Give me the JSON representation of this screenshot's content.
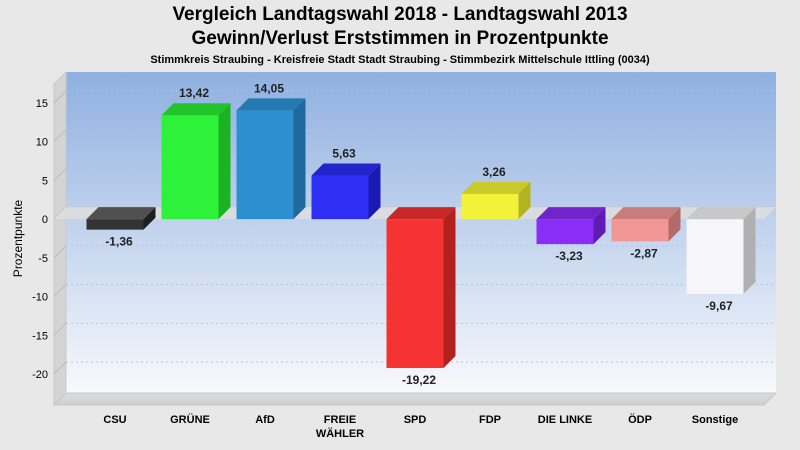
{
  "chart_data": {
    "type": "bar",
    "title": "Vergleich Landtagswahl 2018 - Landtagswahl 2013",
    "subtitle": "Gewinn/Verlust Erststimmen in Prozentpunkte",
    "subtitle2": "Stimmkreis Straubing - Kreisfreie Stadt Stadt Straubing - Stimmbezirk Mittelschule Ittling (0034)",
    "ylabel": "Prozentpunkte",
    "ylim": [
      -24,
      19
    ],
    "yticks": [
      15,
      10,
      5,
      0,
      -5,
      -10,
      -15,
      -20
    ],
    "grid": true,
    "categories": [
      [
        "CSU"
      ],
      [
        "GRÜNE"
      ],
      [
        "AfD"
      ],
      [
        "FREIE",
        "WÄHLER"
      ],
      [
        "SPD"
      ],
      [
        "FDP"
      ],
      [
        "DIE LINKE"
      ],
      [
        "ÖDP"
      ],
      [
        "Sonstige"
      ]
    ],
    "values": [
      -1.36,
      13.42,
      14.05,
      5.63,
      -19.22,
      3.26,
      -3.23,
      -2.87,
      -9.67
    ],
    "value_labels": [
      "-1,36",
      "13,42",
      "14,05",
      "5,63",
      "-19,22",
      "3,26",
      "-3,23",
      "-2,87",
      "-9,67"
    ],
    "colors": [
      "#333333",
      "#2ef23a",
      "#2e8fd0",
      "#2e2ef5",
      "#f53333",
      "#f2f23a",
      "#8a2ef5",
      "#f29696",
      "#f5f5fa"
    ],
    "side_colors": [
      "#1e1e1e",
      "#1bb322",
      "#1e6a9e",
      "#1b1bb3",
      "#b32020",
      "#b3b322",
      "#5f1bb3",
      "#b36a6a",
      "#b0b0b0"
    ],
    "top_colors": [
      "#505050",
      "#22c42a",
      "#2479b0",
      "#2424cc",
      "#c92828",
      "#c9c92c",
      "#7224cc",
      "#c97c7c",
      "#c8c8c8"
    ]
  }
}
